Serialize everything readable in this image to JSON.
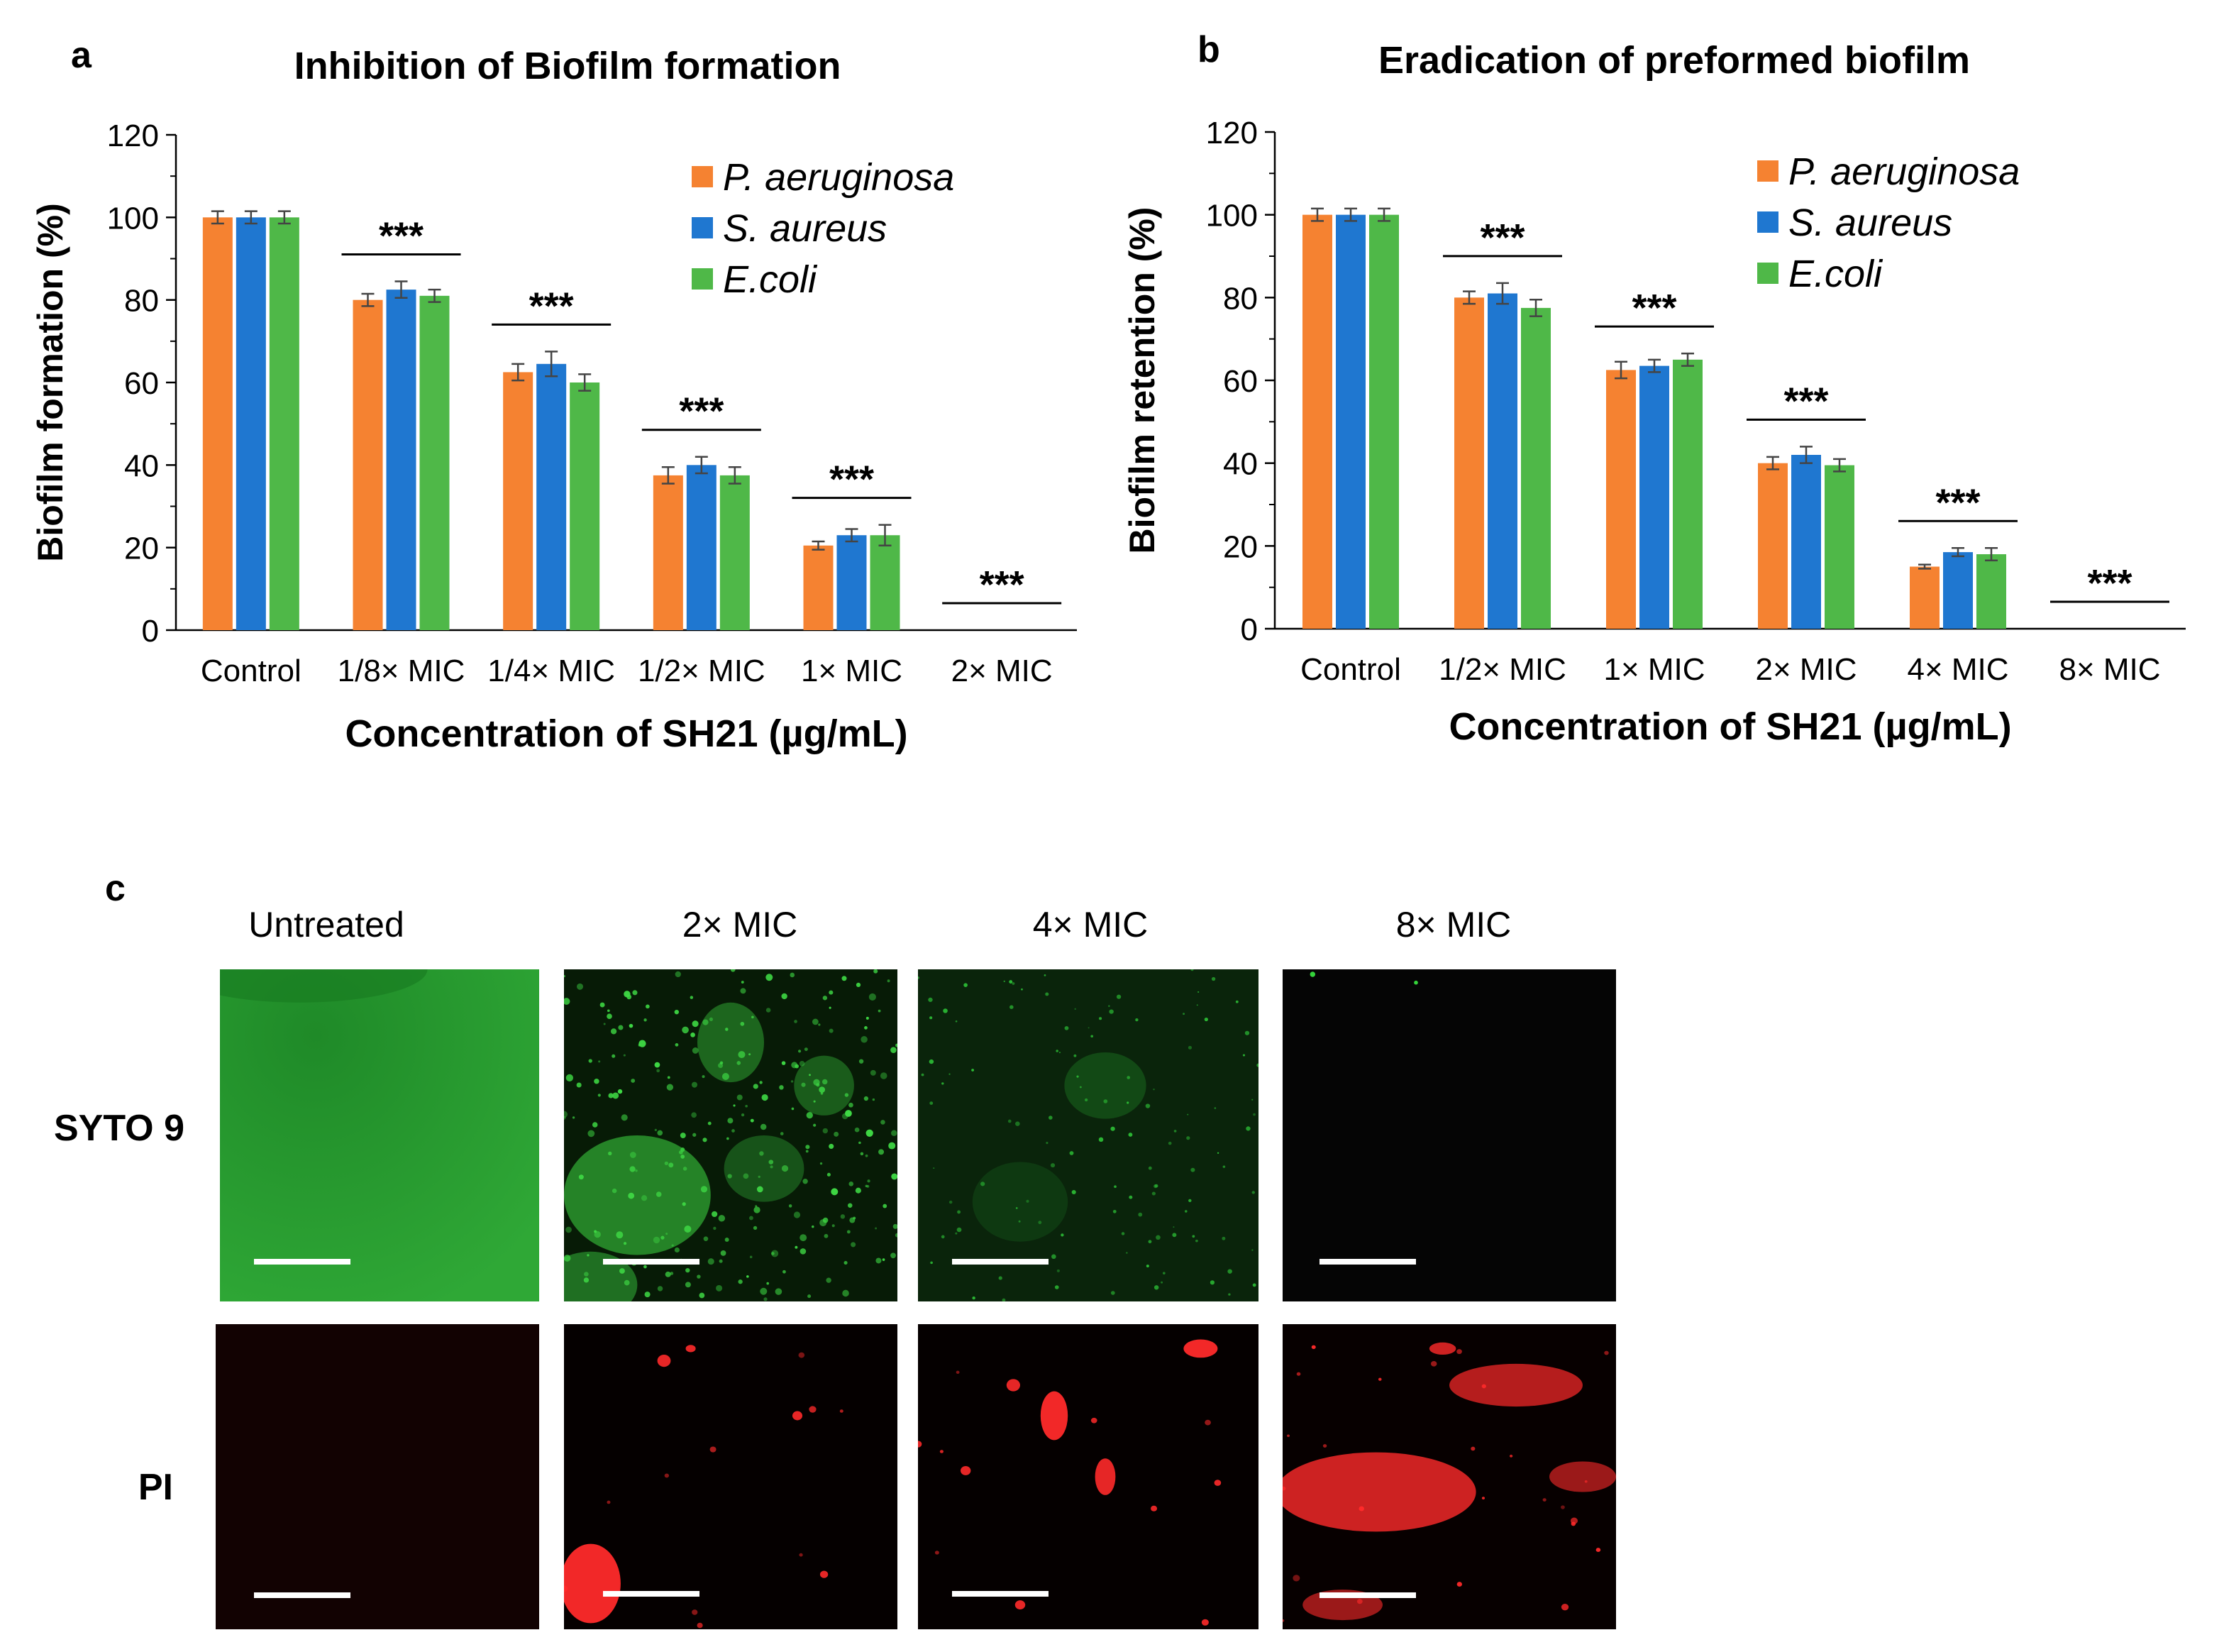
{
  "panels": {
    "a": "a",
    "b": "b",
    "c": "c"
  },
  "chart_data": [
    {
      "type": "bar",
      "title": "Inhibition of Biofilm formation",
      "xlabel": "Concentration of SH21 (µg/mL)",
      "ylabel": "Biofilm formation (%)",
      "ylim": [
        0,
        120
      ],
      "yticks": [
        "0",
        "20",
        "40",
        "60",
        "80",
        "100",
        "120"
      ],
      "categories": [
        "Control",
        "1/8× MIC",
        "1/4× MIC",
        "1/2× MIC",
        "1× MIC",
        "2× MIC"
      ],
      "series": [
        {
          "name": "P. aeruginosa",
          "color": "#f58231",
          "values": [
            100,
            80,
            62.5,
            37.5,
            20.5,
            0
          ],
          "errors": [
            1.5,
            1.5,
            2,
            2,
            1,
            0
          ]
        },
        {
          "name": "S. aureus",
          "color": "#1f77d0",
          "values": [
            100,
            82.5,
            64.5,
            40,
            23,
            0
          ],
          "errors": [
            1.5,
            2,
            3,
            2,
            1.5,
            0
          ]
        },
        {
          "name": "E.coli",
          "color": "#4fb848",
          "values": [
            100,
            81,
            60,
            37.5,
            23,
            0
          ],
          "errors": [
            1.5,
            1.5,
            2,
            2,
            2.5,
            0
          ]
        }
      ],
      "significance": [
        "",
        "***",
        "***",
        "***",
        "***",
        "***"
      ],
      "legend_position": "top-right",
      "grid": false
    },
    {
      "type": "bar",
      "title": "Eradication of preformed biofilm",
      "xlabel": "Concentration of SH21 (µg/mL)",
      "ylabel": "Biofilm retention (%)",
      "ylim": [
        0,
        120
      ],
      "yticks": [
        "0",
        "20",
        "40",
        "60",
        "80",
        "100",
        "120"
      ],
      "categories": [
        "Control",
        "1/2× MIC",
        "1× MIC",
        "2× MIC",
        "4× MIC",
        "8× MIC"
      ],
      "series": [
        {
          "name": "P. aeruginosa",
          "color": "#f58231",
          "values": [
            100,
            80,
            62.5,
            40,
            15,
            0
          ],
          "errors": [
            1.5,
            1.5,
            2,
            1.5,
            0.5,
            0
          ]
        },
        {
          "name": "S. aureus",
          "color": "#1f77d0",
          "values": [
            100,
            81,
            63.5,
            42,
            18.5,
            0
          ],
          "errors": [
            1.5,
            2.5,
            1.5,
            2,
            1,
            0
          ]
        },
        {
          "name": "E.coli",
          "color": "#4fb848",
          "values": [
            100,
            77.5,
            65,
            39.5,
            18,
            0
          ],
          "errors": [
            1.5,
            2,
            1.5,
            1.5,
            1.5,
            0
          ]
        }
      ],
      "significance": [
        "",
        "***",
        "***",
        "***",
        "***",
        "***"
      ],
      "legend_position": "top-right",
      "grid": false
    }
  ],
  "micrographs": {
    "columns": [
      "Untreated",
      "2× MIC",
      "4× MIC",
      "8× MIC"
    ],
    "rows": [
      "SYTO 9",
      "PI"
    ]
  }
}
